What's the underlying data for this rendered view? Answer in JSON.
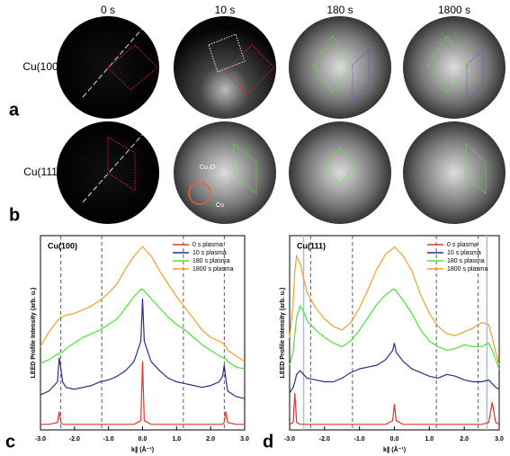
{
  "figure": {
    "time_labels": [
      "0 s",
      "10 s",
      "180 s",
      "1800 s"
    ],
    "row_labels": [
      "Cu(100)",
      "Cu(111)"
    ],
    "panel_labels": [
      "a",
      "b",
      "c",
      "d"
    ],
    "annotations": [
      "Cu₂O",
      "Cu"
    ]
  },
  "chart_data": [
    {
      "type": "line",
      "title": "Cu(100)",
      "x_label": "k∥ (Å⁻¹)",
      "y_label": "LEED Profile Intensity (arb. u.)",
      "x": [
        -3,
        -2.75,
        -2.5,
        -2.45,
        -2.4,
        -2.35,
        -2.25,
        -2,
        -1.75,
        -1.5,
        -1.25,
        -1,
        -0.75,
        -0.5,
        -0.25,
        -0.05,
        0,
        0.05,
        0.25,
        0.5,
        0.75,
        1,
        1.25,
        1.5,
        1.75,
        2,
        2.25,
        2.35,
        2.4,
        2.45,
        2.5,
        2.75,
        3
      ],
      "series": [
        {
          "name": "0 s plasma",
          "color": "#e8332a",
          "values": [
            0.3,
            0.3,
            0.4,
            1.0,
            0.4,
            0.3,
            0.3,
            0.3,
            0.3,
            0.3,
            0.3,
            0.3,
            0.3,
            0.3,
            0.3,
            0.5,
            3.7,
            0.5,
            0.3,
            0.3,
            0.3,
            0.3,
            0.3,
            0.3,
            0.3,
            0.3,
            0.3,
            0.3,
            0.4,
            1.0,
            0.4,
            0.3,
            0.3
          ]
        },
        {
          "name": "10 s plasma",
          "color": "#2b2d8a",
          "values": [
            1.9,
            2.1,
            2.6,
            3.9,
            3.3,
            2.6,
            2.3,
            2.2,
            2.3,
            2.4,
            2.6,
            2.7,
            2.9,
            3.2,
            3.7,
            4.8,
            7.1,
            4.8,
            3.7,
            3.2,
            2.8,
            2.6,
            2.5,
            2.4,
            2.3,
            2.4,
            2.6,
            2.9,
            3.5,
            2.7,
            2.1,
            1.8,
            1.7
          ]
        },
        {
          "name": "180 s plasma",
          "color": "#4fe03a",
          "values": [
            3.6,
            3.8,
            4.1,
            4.1,
            4.2,
            4.2,
            4.4,
            4.7,
            5.0,
            5.2,
            5.4,
            5.7,
            6.0,
            6.6,
            7.2,
            7.6,
            7.6,
            7.5,
            7.1,
            6.6,
            6.1,
            5.7,
            5.4,
            5.0,
            4.6,
            4.3,
            4.0,
            3.9,
            3.9,
            3.8,
            3.7,
            3.4,
            3.3
          ]
        },
        {
          "name": "1800 s plasma",
          "color": "#f0a02a",
          "values": [
            4.5,
            5.3,
            5.9,
            6.0,
            6.1,
            6.1,
            6.2,
            6.3,
            6.5,
            6.7,
            7.0,
            7.4,
            7.9,
            8.7,
            9.4,
            9.8,
            9.9,
            9.8,
            9.4,
            8.6,
            7.9,
            7.2,
            6.6,
            6.0,
            5.4,
            5.0,
            4.8,
            4.7,
            4.6,
            4.5,
            4.3,
            4.0,
            3.7
          ]
        }
      ],
      "xlim": [
        -3,
        3
      ],
      "xticks": [
        {
          "value": -3,
          "label": "-3.0"
        },
        {
          "value": -2,
          "label": "-2.0"
        },
        {
          "value": -1,
          "label": "-1.0"
        },
        {
          "value": 0,
          "label": "0.0"
        },
        {
          "value": 1,
          "label": "1.0"
        },
        {
          "value": 2,
          "label": "2.0"
        },
        {
          "value": 3,
          "label": "3.0"
        }
      ],
      "ylim": [
        0,
        10.5
      ],
      "reference_lines": [
        -2.4,
        -1.2,
        1.2,
        2.4
      ],
      "legend": "upper right"
    },
    {
      "type": "line",
      "title": "Cu(111)",
      "x_label": "k∥ (Å⁻¹)",
      "y_label": "LEED Profile Intensity (arb. u.)",
      "x": [
        -3,
        -2.9,
        -2.85,
        -2.8,
        -2.7,
        -2.6,
        -2.5,
        -2.25,
        -2,
        -1.75,
        -1.5,
        -1.25,
        -1,
        -0.75,
        -0.5,
        -0.25,
        -0.05,
        0,
        0.05,
        0.25,
        0.5,
        0.75,
        1,
        1.25,
        1.5,
        1.75,
        2,
        2.25,
        2.5,
        2.7,
        2.8,
        2.9,
        3
      ],
      "series": [
        {
          "name": "0 s plasma",
          "color": "#e8332a",
          "values": [
            0.3,
            0.4,
            2.0,
            0.4,
            0.3,
            0.3,
            0.3,
            0.3,
            0.3,
            0.3,
            0.3,
            0.3,
            0.3,
            0.3,
            0.3,
            0.3,
            0.5,
            1.4,
            0.5,
            0.3,
            0.3,
            0.3,
            0.3,
            0.3,
            0.3,
            0.3,
            0.3,
            0.3,
            0.3,
            0.4,
            1.5,
            0.4,
            0.3
          ]
        },
        {
          "name": "10 s plasma",
          "color": "#2b2d8a",
          "values": [
            2.0,
            2.3,
            2.6,
            3.0,
            3.2,
            3.0,
            2.8,
            2.7,
            2.6,
            2.6,
            2.8,
            3.1,
            3.3,
            3.4,
            3.5,
            3.8,
            4.3,
            4.7,
            4.2,
            3.7,
            3.3,
            3.1,
            2.9,
            2.8,
            3.0,
            2.9,
            2.7,
            2.6,
            2.6,
            2.7,
            2.5,
            2.3,
            2.2
          ]
        },
        {
          "name": "180 s plasma",
          "color": "#4fe03a",
          "values": [
            3.5,
            4.2,
            5.2,
            6.1,
            6.7,
            6.4,
            5.9,
            5.4,
            5.0,
            4.7,
            4.5,
            4.8,
            5.4,
            6.1,
            6.8,
            7.3,
            7.6,
            7.6,
            7.5,
            7.0,
            6.3,
            5.4,
            4.8,
            4.5,
            4.3,
            4.4,
            4.6,
            4.5,
            4.5,
            4.7,
            4.3,
            3.8,
            3.3
          ]
        },
        {
          "name": "1800 s plasma",
          "color": "#f0a02a",
          "values": [
            5.0,
            6.8,
            8.6,
            9.4,
            9.0,
            8.2,
            7.4,
            6.6,
            6.0,
            5.6,
            5.4,
            5.8,
            6.6,
            7.6,
            8.7,
            9.5,
            9.8,
            9.9,
            9.8,
            9.4,
            8.6,
            7.3,
            6.3,
            5.6,
            5.2,
            5.1,
            5.3,
            5.5,
            5.8,
            5.7,
            5.0,
            4.2,
            3.5
          ]
        }
      ],
      "xlim": [
        -3,
        3
      ],
      "xticks": [
        {
          "value": -3,
          "label": "-3.0"
        },
        {
          "value": -2,
          "label": "-2.0"
        },
        {
          "value": -1,
          "label": "-1.0"
        },
        {
          "value": 0,
          "label": "0.0"
        },
        {
          "value": 1,
          "label": "1.0"
        },
        {
          "value": 2,
          "label": "2.0"
        },
        {
          "value": 3,
          "label": "3.0"
        }
      ],
      "ylim": [
        0,
        10.5
      ],
      "reference_lines": [
        -2.4,
        -1.2,
        1.2,
        2.4
      ],
      "highlight_lines": [
        -2.6,
        2.65
      ],
      "legend": "upper right"
    }
  ]
}
